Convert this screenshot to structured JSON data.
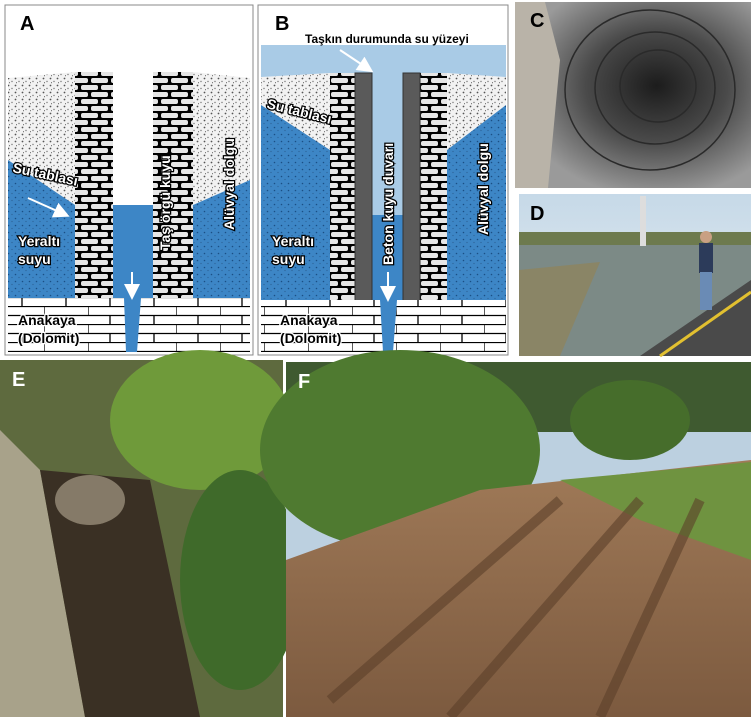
{
  "panel_a": {
    "label": "A",
    "water_table": "Su tablası",
    "groundwater": [
      "Yeraltı",
      "suyu"
    ],
    "well": "Taş örgü kuyu",
    "alluvium": "Alüvyal dolgu",
    "bedrock": [
      "Anakaya",
      "(Dolomit)"
    ]
  },
  "panel_b": {
    "label": "B",
    "flood_surface": "Taşkın durumunda su yüzeyi",
    "water_table": "Su tablası",
    "groundwater": [
      "Yeraltı",
      "suyu"
    ],
    "well": "Beton kuyu duvarı",
    "alluvium": "Alüvyal dolgu",
    "bedrock": [
      "Anakaya",
      "(Dolomit)"
    ]
  },
  "panel_c": {
    "label": "C"
  },
  "panel_d": {
    "label": "D"
  },
  "panel_e": {
    "label": "E"
  },
  "panel_f": {
    "label": "F"
  }
}
